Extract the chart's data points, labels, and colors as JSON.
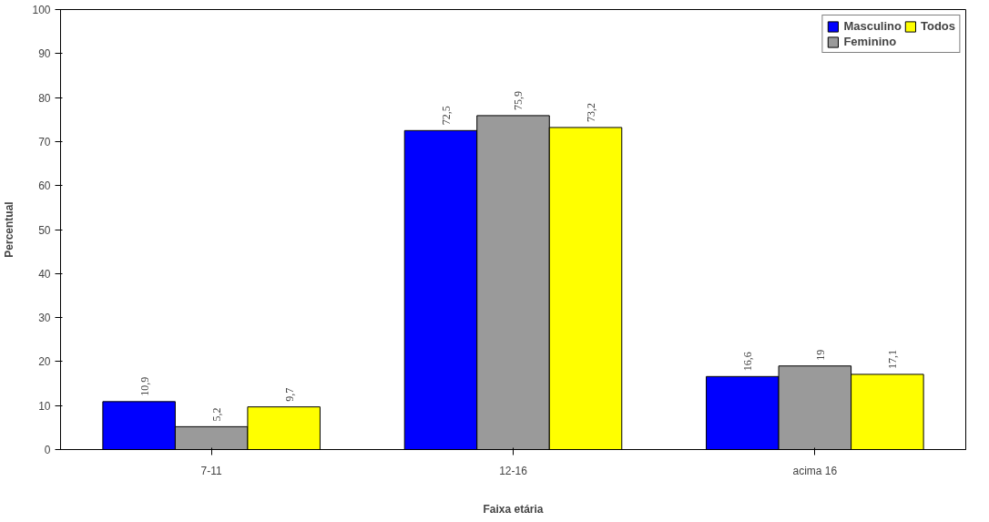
{
  "chart_data": {
    "type": "bar",
    "xlabel": "Faixa etária",
    "ylabel": "Percentual",
    "categories": [
      "7-11",
      "12-16",
      "acima 16"
    ],
    "series": [
      {
        "name": "Masculino",
        "color": "#0000ff",
        "values": [
          10.9,
          72.5,
          16.6
        ],
        "value_labels": [
          "10,9",
          "72,5",
          "16,6"
        ]
      },
      {
        "name": "Feminino",
        "color": "#9a9a9a",
        "values": [
          5.2,
          75.9,
          19
        ],
        "value_labels": [
          "5,2",
          "75,9",
          "19"
        ]
      },
      {
        "name": "Todos",
        "color": "#ffff00",
        "values": [
          9.7,
          73.2,
          17.1
        ],
        "value_labels": [
          "9,7",
          "73,2",
          "17,1"
        ]
      }
    ],
    "ylim": [
      0,
      100
    ],
    "yticks": [
      0,
      10,
      20,
      30,
      40,
      50,
      60,
      70,
      80,
      90,
      100
    ],
    "grid": false,
    "legend": "top right"
  }
}
